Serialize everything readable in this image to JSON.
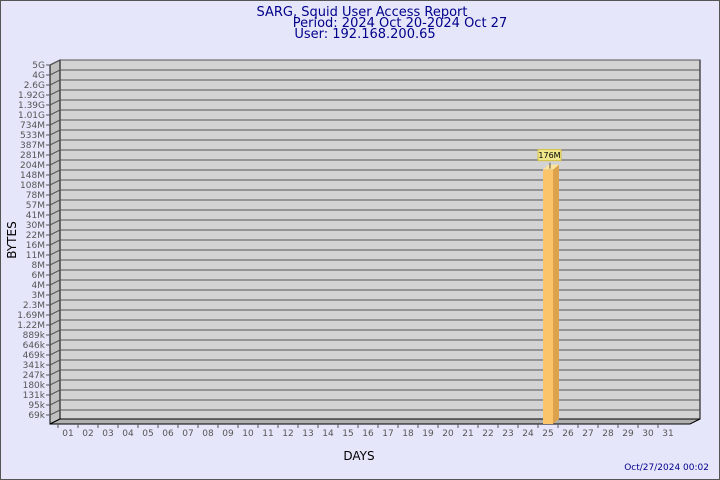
{
  "chart_data": {
    "type": "bar",
    "title": "SARG, Squid User Access Report",
    "subtitle_period": "Period: 2024 Oct 20-2024 Oct 27",
    "subtitle_user": "User: 192.168.200.65",
    "xlabel": "DAYS",
    "ylabel": "BYTES",
    "y_scale": "log",
    "grid": true,
    "y_tick_labels": [
      "5G",
      "4G",
      "2.6G",
      "1.92G",
      "1.39G",
      "1.01G",
      "734M",
      "533M",
      "387M",
      "281M",
      "204M",
      "148M",
      "108M",
      "78M",
      "57M",
      "41M",
      "30M",
      "22M",
      "16M",
      "11M",
      "8M",
      "6M",
      "4M",
      "3M",
      "2.3M",
      "1.69M",
      "1.22M",
      "889k",
      "646k",
      "469k",
      "341k",
      "247k",
      "180k",
      "131k",
      "95k",
      "69k"
    ],
    "categories": [
      "01",
      "02",
      "03",
      "04",
      "05",
      "06",
      "07",
      "08",
      "09",
      "10",
      "11",
      "12",
      "13",
      "14",
      "15",
      "16",
      "17",
      "18",
      "19",
      "20",
      "21",
      "22",
      "23",
      "24",
      "25",
      "26",
      "27",
      "28",
      "29",
      "30",
      "31"
    ],
    "bars": [
      {
        "day": "25",
        "value": "176M"
      }
    ],
    "bar_color": "#fcc46a",
    "plot_background": "#d3d3d3",
    "footer_timestamp": "Oct/27/2024 00:02"
  }
}
